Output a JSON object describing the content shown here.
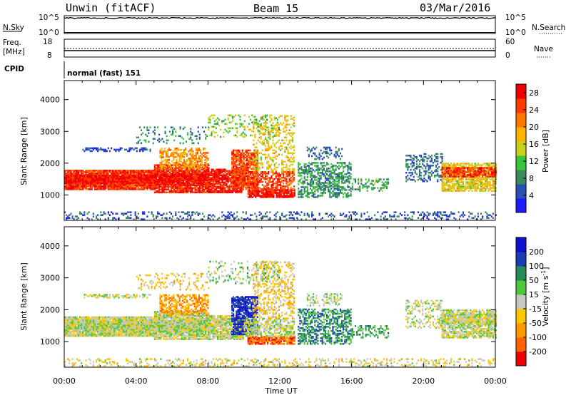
{
  "header": {
    "radar": "Unwin (fitACF)",
    "beam": "Beam 15",
    "date": "03/Mar/2016"
  },
  "top_panels": {
    "nsky_label": "N.Sky",
    "nsky_ticks": [
      "10^5",
      "10^0"
    ],
    "nsearch_label": "N.Search",
    "nsearch_ticks": [
      "10^5",
      "10^0"
    ],
    "freq_label": "Freq.",
    "freq_unit": "[MHz]",
    "freq_ticks": [
      "18",
      "8"
    ],
    "nave_label": "Nave",
    "nave_ticks": [
      "60",
      "0"
    ],
    "cpid_label": "CPID",
    "cpid_value": "normal (fast) 151"
  },
  "colors": {
    "power": [
      "#1c1cff",
      "#2a50b4",
      "#3a8a5a",
      "#3cc43c",
      "#c8d21e",
      "#ffb400",
      "#ff7800",
      "#ff3c00",
      "#f00000"
    ],
    "velocity": [
      "#f00000",
      "#ff6400",
      "#ff9a00",
      "#ffc800",
      "#c8c8c0",
      "#50c83c",
      "#288c5a",
      "#1c3cb4",
      "#1010d0"
    ]
  },
  "chart_data": [
    {
      "type": "heatmap",
      "name": "power",
      "ylabel": "Slant Range [km]",
      "yticks": [
        "1000",
        "2000",
        "3000",
        "4000"
      ],
      "ylim": [
        200,
        4600
      ],
      "xlabel": "",
      "xlim": [
        "00:00",
        "24:00"
      ],
      "colorbar_label": "Power [dB]",
      "colorbar_ticks": [
        "4",
        "8",
        "12",
        "16",
        "20",
        "24",
        "28"
      ],
      "colorbar_range": [
        0,
        30
      ]
    },
    {
      "type": "heatmap",
      "name": "velocity",
      "ylabel": "Slant Range [km]",
      "yticks": [
        "1000",
        "2000",
        "3000",
        "4000"
      ],
      "ylim": [
        200,
        4600
      ],
      "xlabel": "Time UT",
      "xticks": [
        "00:00",
        "04:00",
        "08:00",
        "12:00",
        "16:00",
        "20:00",
        "00:00"
      ],
      "xlim": [
        "00:00",
        "24:00"
      ],
      "colorbar_label": "Velocity [m s-1]",
      "colorbar_ticks": [
        "200",
        "100",
        "50",
        "15",
        "-15",
        "-50",
        "-100",
        "-200"
      ]
    }
  ]
}
